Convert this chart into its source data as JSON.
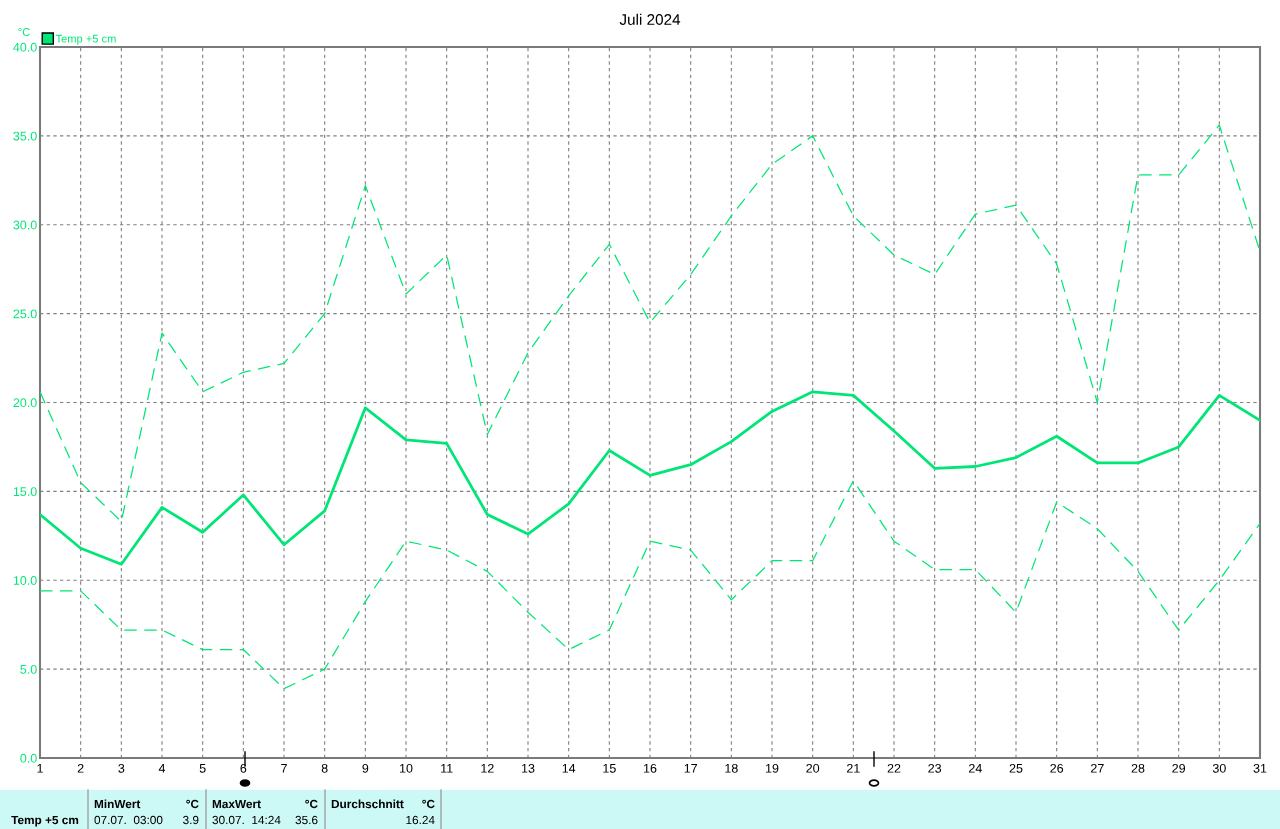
{
  "chart_data": {
    "type": "line",
    "title": "Juli 2024",
    "ylabel": "°C",
    "x": [
      1,
      2,
      3,
      4,
      5,
      6,
      7,
      8,
      9,
      10,
      11,
      12,
      13,
      14,
      15,
      16,
      17,
      18,
      19,
      20,
      21,
      22,
      23,
      24,
      25,
      26,
      27,
      28,
      29,
      30,
      31
    ],
    "series": [
      {
        "name": "Temp +5 cm",
        "color": "#00e676",
        "line_style": "solid",
        "values": [
          13.7,
          11.8,
          10.9,
          14.1,
          12.7,
          14.8,
          12.0,
          13.9,
          19.7,
          17.9,
          17.7,
          13.7,
          12.6,
          14.3,
          17.3,
          15.9,
          16.5,
          17.8,
          19.5,
          20.6,
          20.4,
          18.4,
          16.3,
          16.4,
          16.9,
          18.1,
          16.6,
          16.6,
          17.5,
          20.4,
          19.0
        ]
      },
      {
        "color": "#00e676",
        "line_style": "dashed",
        "values": [
          20.6,
          15.5,
          13.3,
          23.9,
          20.6,
          21.7,
          22.2,
          25.0,
          32.2,
          26.1,
          28.3,
          18.2,
          22.8,
          26.0,
          28.9,
          24.5,
          27.2,
          30.5,
          33.4,
          35.0,
          30.5,
          28.3,
          27.2,
          30.6,
          31.1,
          27.8,
          20.0,
          32.8,
          32.8,
          35.6,
          28.5
        ]
      },
      {
        "color": "#00e676",
        "line_style": "dashed",
        "values": [
          9.4,
          9.4,
          7.2,
          7.2,
          6.1,
          6.1,
          3.9,
          5.0,
          8.8,
          12.2,
          11.7,
          10.5,
          8.2,
          6.1,
          7.2,
          12.2,
          11.7,
          8.9,
          11.1,
          11.1,
          15.6,
          12.2,
          10.6,
          10.6,
          8.2,
          14.4,
          12.9,
          10.5,
          7.2,
          10.0,
          13.2
        ]
      }
    ],
    "xlim": [
      1,
      31
    ],
    "xticks": [
      1,
      2,
      3,
      4,
      5,
      6,
      7,
      8,
      9,
      10,
      11,
      12,
      13,
      14,
      15,
      16,
      17,
      18,
      19,
      20,
      21,
      22,
      23,
      24,
      25,
      26,
      27,
      28,
      29,
      30,
      31
    ],
    "ylim": [
      0,
      40
    ],
    "yticks": [
      {
        "value": 0,
        "label": "0.0"
      },
      {
        "value": 5,
        "label": "5.0"
      },
      {
        "value": 10,
        "label": "10.0"
      },
      {
        "value": 15,
        "label": "15.0"
      },
      {
        "value": 20,
        "label": "20.0"
      },
      {
        "value": 25,
        "label": "25.0"
      },
      {
        "value": 30,
        "label": "30.0"
      },
      {
        "value": 35,
        "label": "35.0"
      },
      {
        "value": 40,
        "label": "40.0"
      }
    ],
    "grid": true,
    "legend": "top left",
    "marker": "none",
    "annotations": [
      "Temp +5 cm",
      "MinWert",
      "°C",
      "07.07.  03:00",
      "3.9",
      "MaxWert",
      "°C",
      "30.07.  14:24",
      "35.6",
      "Durchschnitt",
      "°C",
      "16.24"
    ]
  }
}
